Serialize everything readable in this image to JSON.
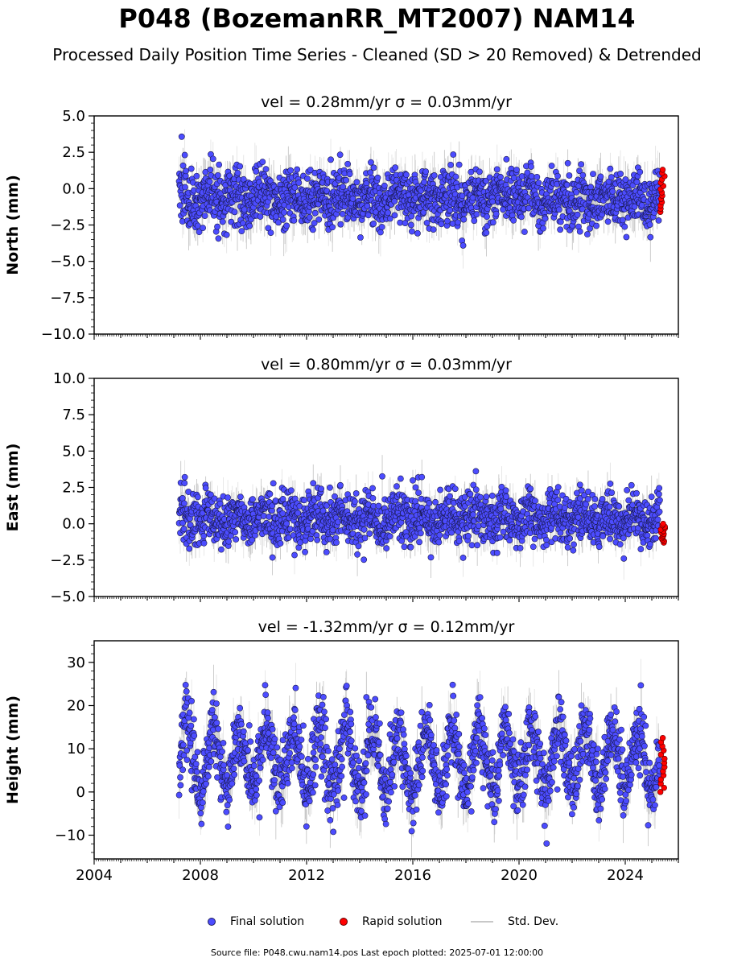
{
  "title": "P048 (BozemanRR_MT2007) NAM14",
  "subtitle": "Processed Daily Position Time Series - Cleaned (SD > 20 Removed) & Detrended",
  "legend": {
    "final": "Final solution",
    "rapid": "Rapid solution",
    "std": "Std. Dev."
  },
  "footer": "Source file: P048.cwu.nam14.pos  Last epoch plotted: 2025-07-01 12:00:00",
  "colors": {
    "final": "#4c4cff",
    "rapid": "#ff0000",
    "std": "#8c8c8c"
  },
  "chart_data": [
    {
      "type": "scatter",
      "title": "vel = 0.28mm/yr   σ = 0.03mm/yr",
      "ylabel": "North (mm)",
      "xlim": [
        2004,
        2026
      ],
      "ylim": [
        -10,
        5
      ],
      "yticks": [
        -10,
        -7.5,
        -5,
        -2.5,
        0,
        2.5,
        5
      ],
      "ytick_labels": [
        "−10.0",
        "−7.5",
        "−5.0",
        "−2.5",
        "0.0",
        "2.5",
        "5.0"
      ],
      "series": [
        {
          "name": "Final solution",
          "x_range": [
            2007.2,
            2025.3
          ],
          "mean": -0.7,
          "spread": 1.0,
          "std_dev": 1.2
        },
        {
          "name": "Rapid solution",
          "x_range": [
            2025.32,
            2025.5
          ],
          "y_range": [
            -1.6,
            1.3
          ]
        }
      ]
    },
    {
      "type": "scatter",
      "title": "vel = 0.80mm/yr   σ = 0.03mm/yr",
      "ylabel": "East (mm)",
      "xlim": [
        2004,
        2026
      ],
      "ylim": [
        -5,
        10
      ],
      "yticks": [
        -5,
        -2.5,
        0,
        2.5,
        5,
        7.5,
        10
      ],
      "ytick_labels": [
        "−5.0",
        "−2.5",
        "0.0",
        "2.5",
        "5.0",
        "7.5",
        "10.0"
      ],
      "series": [
        {
          "name": "Final solution",
          "x_range": [
            2007.2,
            2025.3
          ],
          "mean": 0.4,
          "spread": 0.9,
          "std_dev": 1.0
        },
        {
          "name": "Rapid solution",
          "x_range": [
            2025.32,
            2025.5
          ],
          "y_range": [
            -1.3,
            0.0
          ]
        }
      ]
    },
    {
      "type": "scatter",
      "title": "vel = -1.32mm/yr   σ = 0.12mm/yr",
      "ylabel": "Height (mm)",
      "xlim": [
        2004,
        2026
      ],
      "ylim": [
        -15.5,
        35
      ],
      "yticks": [
        -10,
        0,
        10,
        20,
        30
      ],
      "ytick_labels": [
        "−10",
        "0",
        "10",
        "20",
        "30"
      ],
      "xticks": [
        2004,
        2008,
        2012,
        2016,
        2020,
        2024
      ],
      "xtick_labels": [
        "2004",
        "2008",
        "2012",
        "2016",
        "2020",
        "2024"
      ],
      "series": [
        {
          "name": "Final solution",
          "x_range": [
            2007.2,
            2025.3
          ],
          "mean": 7.5,
          "seasonal_amplitude": 7.0,
          "spread": 4.0,
          "std_dev": 4.5
        },
        {
          "name": "Rapid solution",
          "x_range": [
            2025.32,
            2025.5
          ],
          "y_range": [
            0,
            12.5
          ]
        }
      ]
    }
  ]
}
